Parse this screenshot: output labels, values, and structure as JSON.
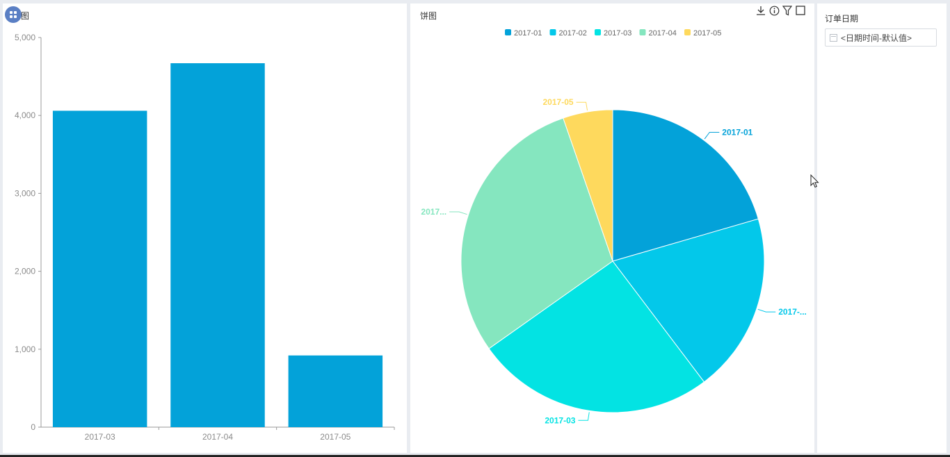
{
  "bar_panel": {
    "title": "图"
  },
  "pie_panel": {
    "title": "饼图",
    "toolbar": [
      "download-icon",
      "info-icon",
      "filter-icon",
      "maximize-icon"
    ]
  },
  "filter_panel": {
    "title": "订单日期",
    "date_input_value": "<日期时间-默认值>"
  },
  "colors": {
    "bar": "#03a2d9",
    "pie": [
      "#03a2d9",
      "#03c8ea",
      "#03e3e3",
      "#85e6bf",
      "#fed95d"
    ],
    "axis": "#999999",
    "panel_bg": "#ffffff",
    "page_bg": "#e9ecf1"
  },
  "chart_data": [
    {
      "type": "bar",
      "categories": [
        "2017-03",
        "2017-04",
        "2017-05"
      ],
      "values": [
        4060,
        4670,
        920
      ],
      "ylim": [
        0,
        5000
      ],
      "yticks": [
        "0",
        "1,000",
        "2,000",
        "3,000",
        "4,000",
        "5,000"
      ],
      "title": "",
      "xlabel": "",
      "ylabel": ""
    },
    {
      "type": "pie",
      "labels": [
        "2017-01",
        "2017-02",
        "2017-03",
        "2017-04",
        "2017-05"
      ],
      "display_labels": [
        "2017-01",
        "2017-...",
        "2017-03",
        "2017...",
        "2017-05"
      ],
      "values": [
        20.5,
        19.2,
        25.5,
        29.5,
        5.3
      ],
      "legend": [
        "2017-01",
        "2017-02",
        "2017-03",
        "2017-04",
        "2017-05"
      ],
      "legend_position": "top"
    }
  ]
}
